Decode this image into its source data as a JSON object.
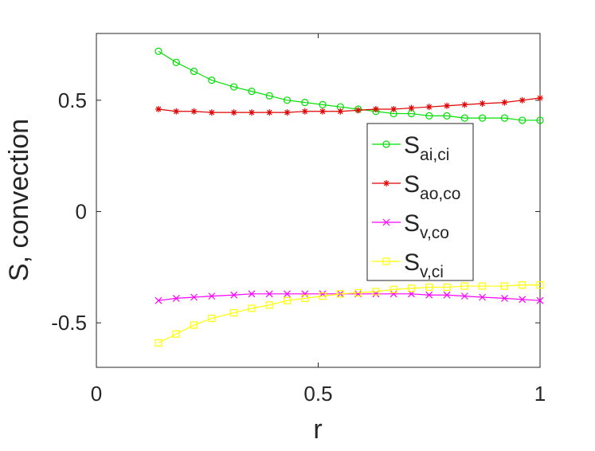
{
  "chart_data": {
    "type": "line",
    "title": "",
    "xlabel": "r",
    "ylabel": "S, convection",
    "xlim": [
      0,
      1
    ],
    "ylim": [
      -0.7,
      0.8
    ],
    "xticks": [
      0,
      0.5,
      1
    ],
    "xtick_labels": [
      "0",
      "0.5",
      "1"
    ],
    "yticks": [
      -0.5,
      0,
      0.5
    ],
    "ytick_labels": [
      "-0.5",
      "0",
      "0.5"
    ],
    "grid": false,
    "legend_position": "inside-right",
    "x": [
      0.14,
      0.18,
      0.22,
      0.26,
      0.31,
      0.35,
      0.39,
      0.43,
      0.47,
      0.51,
      0.55,
      0.59,
      0.63,
      0.67,
      0.71,
      0.75,
      0.79,
      0.83,
      0.87,
      0.92,
      0.96,
      1.0
    ],
    "series": [
      {
        "name": "S",
        "subscript": "ai,ci",
        "color": "#00e000",
        "marker": "circle",
        "values": [
          0.72,
          0.67,
          0.63,
          0.59,
          0.56,
          0.54,
          0.52,
          0.5,
          0.49,
          0.48,
          0.47,
          0.46,
          0.45,
          0.44,
          0.44,
          0.43,
          0.43,
          0.42,
          0.42,
          0.42,
          0.41,
          0.41
        ]
      },
      {
        "name": "S",
        "subscript": "ao,co",
        "color": "#e00000",
        "marker": "asterisk",
        "values": [
          0.46,
          0.45,
          0.45,
          0.445,
          0.445,
          0.445,
          0.445,
          0.445,
          0.45,
          0.45,
          0.45,
          0.455,
          0.46,
          0.46,
          0.465,
          0.47,
          0.475,
          0.48,
          0.485,
          0.49,
          0.5,
          0.51
        ]
      },
      {
        "name": "S",
        "subscript": "v,co",
        "color": "#ff00ff",
        "marker": "x",
        "values": [
          -0.4,
          -0.39,
          -0.385,
          -0.38,
          -0.375,
          -0.37,
          -0.37,
          -0.37,
          -0.37,
          -0.37,
          -0.37,
          -0.37,
          -0.37,
          -0.37,
          -0.37,
          -0.375,
          -0.375,
          -0.38,
          -0.385,
          -0.39,
          -0.395,
          -0.4
        ]
      },
      {
        "name": "S",
        "subscript": "v,ci",
        "color": "#ffff00",
        "marker": "square",
        "values": [
          -0.59,
          -0.55,
          -0.51,
          -0.48,
          -0.455,
          -0.435,
          -0.42,
          -0.4,
          -0.39,
          -0.38,
          -0.37,
          -0.365,
          -0.36,
          -0.35,
          -0.345,
          -0.34,
          -0.34,
          -0.335,
          -0.335,
          -0.335,
          -0.33,
          -0.33
        ]
      }
    ]
  }
}
